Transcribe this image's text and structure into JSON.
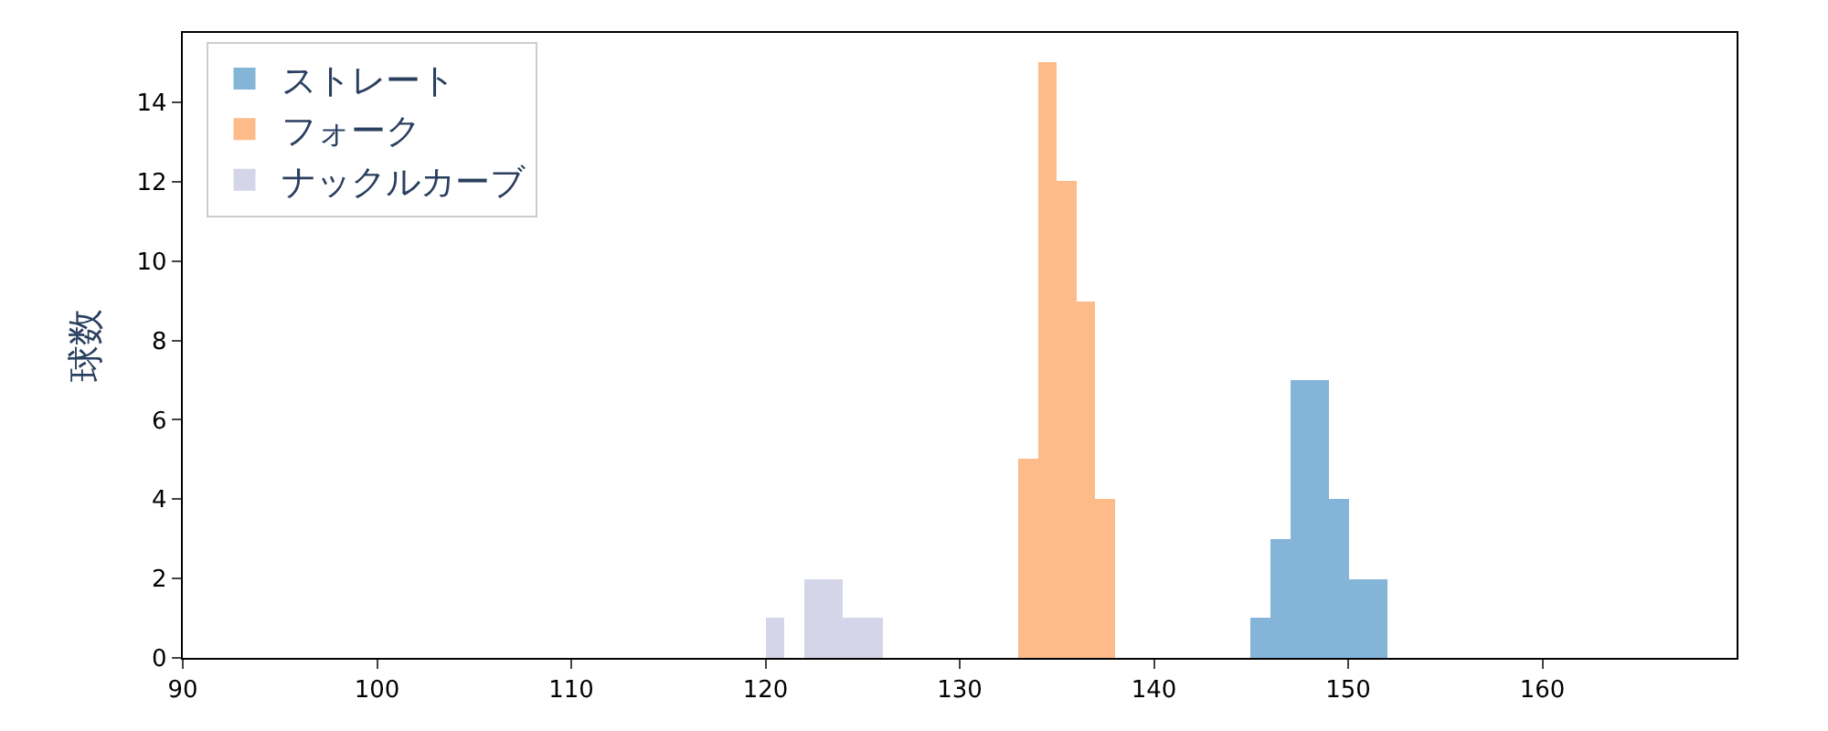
{
  "chart_data": {
    "type": "histogram",
    "ylabel": "球数",
    "bins": [
      120,
      121,
      122,
      123,
      124,
      125,
      126,
      127,
      128,
      129,
      130,
      131,
      132,
      133,
      134,
      135,
      136,
      137,
      138,
      139,
      140,
      141,
      142,
      143,
      144,
      145,
      146,
      147,
      148,
      149,
      150,
      151,
      152
    ],
    "series": [
      {
        "name": "ストレート",
        "color": "#84b4d8",
        "values": [
          0,
          0,
          0,
          0,
          0,
          0,
          0,
          0,
          0,
          0,
          0,
          0,
          0,
          0,
          0,
          0,
          0,
          0,
          0,
          0,
          0,
          0,
          0,
          0,
          0,
          1,
          3,
          7,
          7,
          4,
          2,
          2
        ]
      },
      {
        "name": "フォーク",
        "color": "#fdbb8a",
        "values": [
          0,
          0,
          0,
          0,
          0,
          0,
          0,
          0,
          0,
          0,
          0,
          0,
          0,
          5,
          15,
          12,
          9,
          4,
          0,
          0,
          0,
          0,
          0,
          0,
          0,
          0,
          0,
          0,
          0,
          0,
          0,
          0
        ]
      },
      {
        "name": "ナックルカーブ",
        "color": "#d5d5ea",
        "values": [
          1,
          0,
          2,
          2,
          1,
          1,
          0,
          0,
          0,
          0,
          0,
          0,
          0,
          0,
          0,
          0,
          0,
          0,
          0,
          0,
          0,
          0,
          0,
          0,
          0,
          0,
          0,
          0,
          0,
          0,
          0,
          0
        ]
      }
    ],
    "xlim": [
      90,
      170
    ],
    "xticks": [
      90,
      100,
      110,
      120,
      130,
      140,
      150,
      160
    ],
    "ylim": [
      0,
      15.75
    ],
    "yticks": [
      0,
      2,
      4,
      6,
      8,
      10,
      12,
      14
    ],
    "legend": "top left"
  }
}
